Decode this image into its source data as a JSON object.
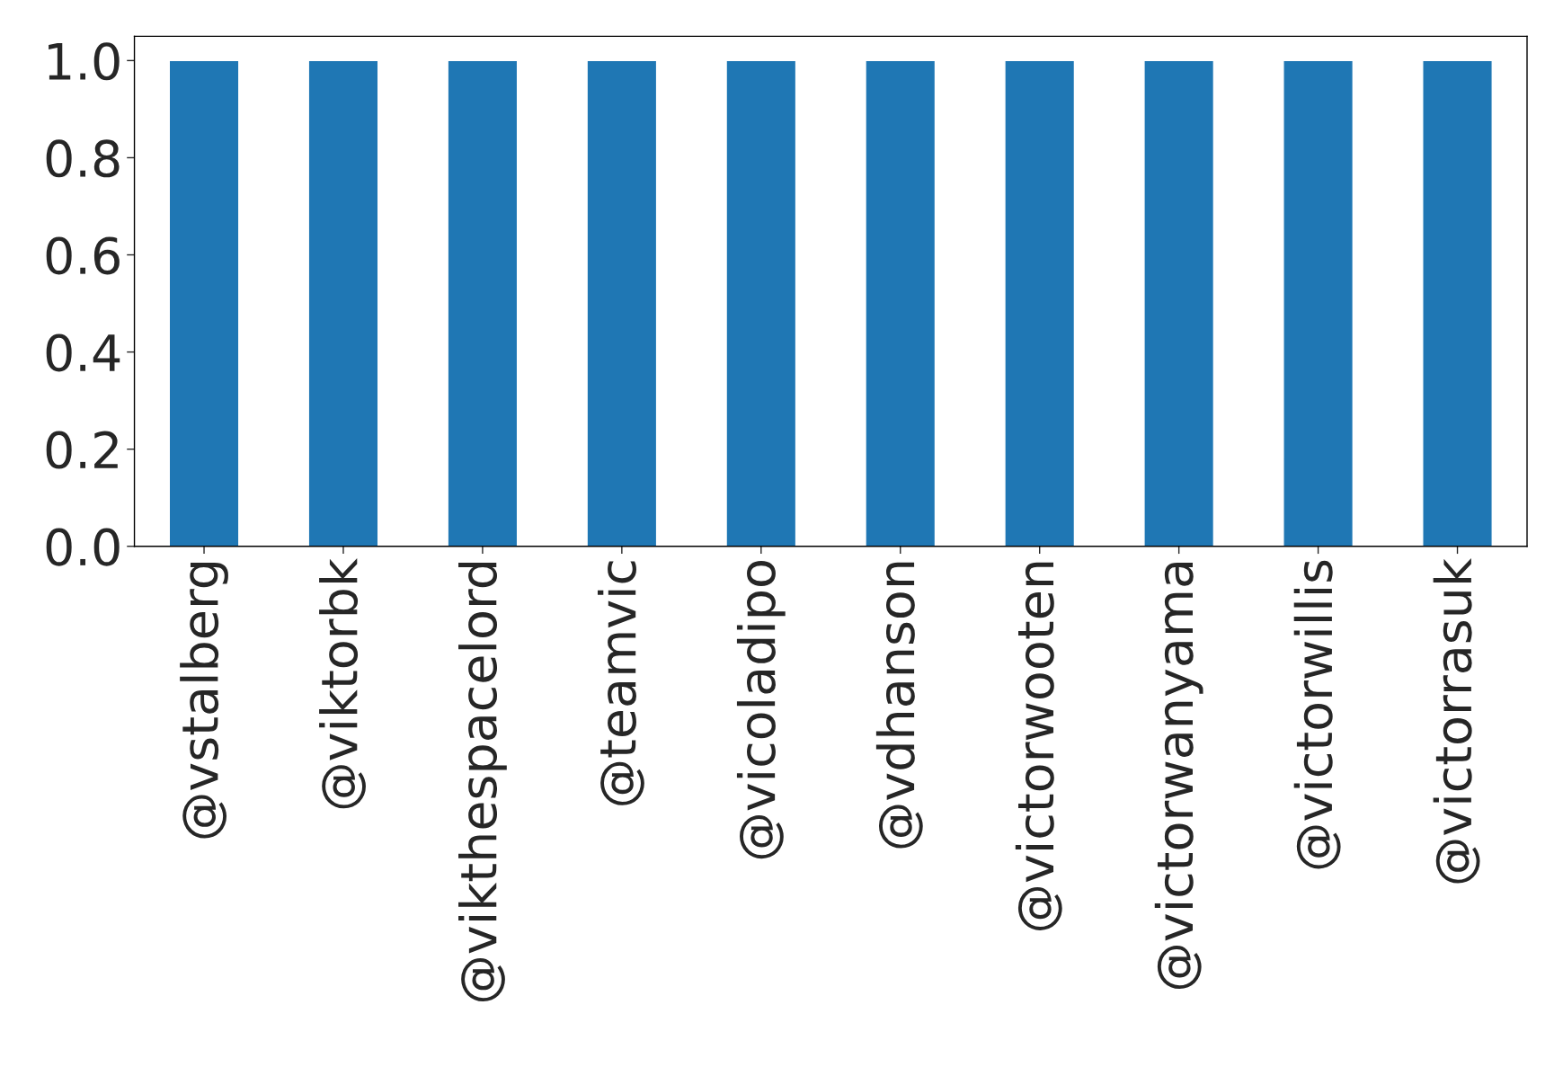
{
  "chart_data": {
    "type": "bar",
    "categories": [
      "@vstalberg",
      "@viktorbk",
      "@vikthespacelord",
      "@teamvic",
      "@vicoladipo",
      "@vdhanson",
      "@victorwooten",
      "@victorwanyama",
      "@victorwillis",
      "@victorrasuk"
    ],
    "values": [
      1,
      1,
      1,
      1,
      1,
      1,
      1,
      1,
      1,
      1
    ],
    "color": "#1f77b4",
    "ylim": [
      0,
      1.05
    ],
    "yticks": [
      {
        "value": 0,
        "label": "0.0"
      },
      {
        "value": 0.2,
        "label": "0.2"
      },
      {
        "value": 0.4,
        "label": "0.4"
      },
      {
        "value": 0.6,
        "label": "0.6"
      },
      {
        "value": 0.8,
        "label": "0.8"
      },
      {
        "value": 1,
        "label": "1.0"
      }
    ],
    "grid": false
  }
}
